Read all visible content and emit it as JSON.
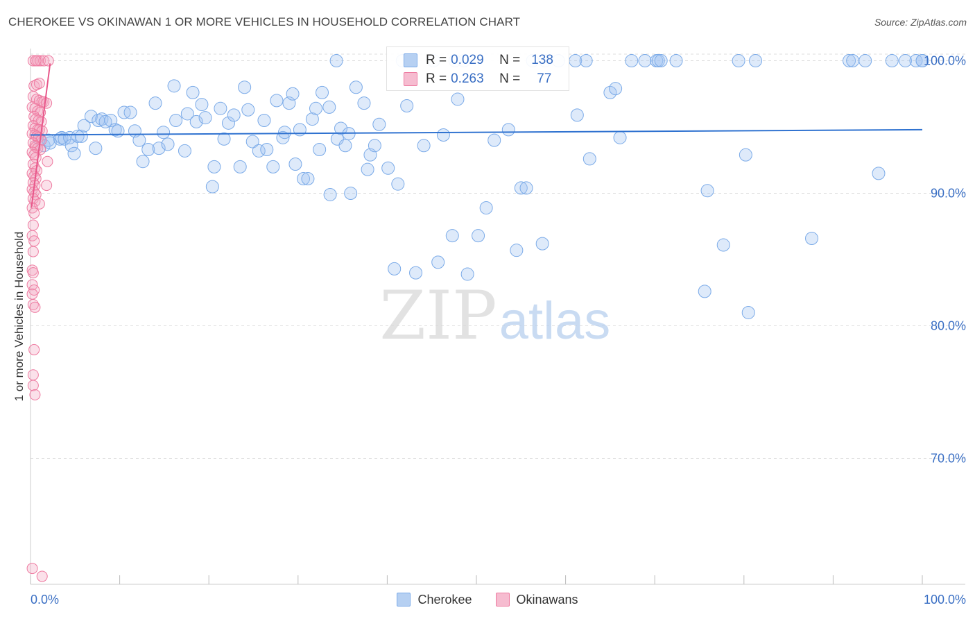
{
  "title": "CHEROKEE VS OKINAWAN 1 OR MORE VEHICLES IN HOUSEHOLD CORRELATION CHART",
  "source": "Source: ZipAtlas.com",
  "watermark": {
    "zip": "ZIP",
    "atlas": "atlas"
  },
  "legend": {
    "r_label": "R =",
    "n_label": "N =",
    "rows": [
      {
        "name": "Cherokee",
        "r": "0.029",
        "n": "138",
        "color": "#7aaae8",
        "fill": "#b6d0f2"
      },
      {
        "name": "Okinawans",
        "r": "0.263",
        "n": "77",
        "color": "#ee7aa0",
        "fill": "#f6bcd0"
      }
    ]
  },
  "chart_data": {
    "type": "scatter",
    "xlabel": "",
    "ylabel": "1 or more Vehicles in Household",
    "xlim": [
      0,
      100
    ],
    "ylim": [
      60.5,
      100.5
    ],
    "x_tick_labels": [
      "0.0%",
      "100.0%"
    ],
    "y_ticks": [
      100,
      90,
      80,
      70
    ],
    "y_tick_labels": [
      "100.0%",
      "90.0%",
      "80.0%",
      "70.0%"
    ],
    "grid": true,
    "series": [
      {
        "name": "Cherokee",
        "color": "#7aaae8",
        "trend": {
          "x": [
            0,
            100
          ],
          "y": [
            94.4,
            94.8
          ]
        },
        "points": [
          [
            1.0,
            94.1
          ],
          [
            1.5,
            93.6
          ],
          [
            2.0,
            94.0
          ],
          [
            2.2,
            93.8
          ],
          [
            3.3,
            94.1
          ],
          [
            3.5,
            94.2
          ],
          [
            3.8,
            94.1
          ],
          [
            4.4,
            94.2
          ],
          [
            4.6,
            93.6
          ],
          [
            4.9,
            93.0
          ],
          [
            5.3,
            94.3
          ],
          [
            5.7,
            94.3
          ],
          [
            6.0,
            95.1
          ],
          [
            6.8,
            95.8
          ],
          [
            7.3,
            93.4
          ],
          [
            7.6,
            95.5
          ],
          [
            8.0,
            95.6
          ],
          [
            8.4,
            95.4
          ],
          [
            9.0,
            95.5
          ],
          [
            9.5,
            94.8
          ],
          [
            9.8,
            94.7
          ],
          [
            10.5,
            96.1
          ],
          [
            11.2,
            96.1
          ],
          [
            11.7,
            94.7
          ],
          [
            12.2,
            94.0
          ],
          [
            12.6,
            92.4
          ],
          [
            13.2,
            93.3
          ],
          [
            14.0,
            96.8
          ],
          [
            14.4,
            93.4
          ],
          [
            14.9,
            94.6
          ],
          [
            15.4,
            93.7
          ],
          [
            16.1,
            98.1
          ],
          [
            16.3,
            95.5
          ],
          [
            17.3,
            93.2
          ],
          [
            17.6,
            96.0
          ],
          [
            18.2,
            97.6
          ],
          [
            18.6,
            95.4
          ],
          [
            19.2,
            96.7
          ],
          [
            19.6,
            95.7
          ],
          [
            20.4,
            90.5
          ],
          [
            20.6,
            92.0
          ],
          [
            21.3,
            96.4
          ],
          [
            21.7,
            94.1
          ],
          [
            22.2,
            95.3
          ],
          [
            22.8,
            95.9
          ],
          [
            23.5,
            92.0
          ],
          [
            24.0,
            98.0
          ],
          [
            24.4,
            96.3
          ],
          [
            24.9,
            93.9
          ],
          [
            25.6,
            93.2
          ],
          [
            26.2,
            95.5
          ],
          [
            26.5,
            93.3
          ],
          [
            27.2,
            92.0
          ],
          [
            27.6,
            97.0
          ],
          [
            28.3,
            94.2
          ],
          [
            28.5,
            94.6
          ],
          [
            29.0,
            96.8
          ],
          [
            29.4,
            97.5
          ],
          [
            29.7,
            92.2
          ],
          [
            30.2,
            94.8
          ],
          [
            30.6,
            91.1
          ],
          [
            31.1,
            91.1
          ],
          [
            31.6,
            95.6
          ],
          [
            32.0,
            96.4
          ],
          [
            32.4,
            93.3
          ],
          [
            32.7,
            97.6
          ],
          [
            33.5,
            96.5
          ],
          [
            33.6,
            89.9
          ],
          [
            34.3,
            100.0
          ],
          [
            34.4,
            94.1
          ],
          [
            34.8,
            94.9
          ],
          [
            35.3,
            93.6
          ],
          [
            35.7,
            94.5
          ],
          [
            35.9,
            90.0
          ],
          [
            36.5,
            98.0
          ],
          [
            37.4,
            96.8
          ],
          [
            37.8,
            91.8
          ],
          [
            38.1,
            92.9
          ],
          [
            38.6,
            93.6
          ],
          [
            39.1,
            95.2
          ],
          [
            40.1,
            91.9
          ],
          [
            40.8,
            84.3
          ],
          [
            41.2,
            90.7
          ],
          [
            41.7,
            100.0
          ],
          [
            42.2,
            96.6
          ],
          [
            43.2,
            84.0
          ],
          [
            44.1,
            93.6
          ],
          [
            45.2,
            100.0
          ],
          [
            45.7,
            84.8
          ],
          [
            46.3,
            94.4
          ],
          [
            47.3,
            86.8
          ],
          [
            47.6,
            100.0
          ],
          [
            47.9,
            97.1
          ],
          [
            48.6,
            100.0
          ],
          [
            49.0,
            83.9
          ],
          [
            50.2,
            86.8
          ],
          [
            51.1,
            88.9
          ],
          [
            52.0,
            94.0
          ],
          [
            53.6,
            94.8
          ],
          [
            54.5,
            85.7
          ],
          [
            55.0,
            90.4
          ],
          [
            55.6,
            90.4
          ],
          [
            56.3,
            100.0
          ],
          [
            57.4,
            86.2
          ],
          [
            57.7,
            100.0
          ],
          [
            59.2,
            100.0
          ],
          [
            61.1,
            100.0
          ],
          [
            61.3,
            95.9
          ],
          [
            62.7,
            92.6
          ],
          [
            62.3,
            100.0
          ],
          [
            65.0,
            97.6
          ],
          [
            65.6,
            97.9
          ],
          [
            66.1,
            94.2
          ],
          [
            67.4,
            100.0
          ],
          [
            68.9,
            100.0
          ],
          [
            70.2,
            100.0
          ],
          [
            70.4,
            100.0
          ],
          [
            70.7,
            100.0
          ],
          [
            72.4,
            100.0
          ],
          [
            75.6,
            82.6
          ],
          [
            75.9,
            90.2
          ],
          [
            77.7,
            86.1
          ],
          [
            79.4,
            100.0
          ],
          [
            80.2,
            92.9
          ],
          [
            80.5,
            81.0
          ],
          [
            81.3,
            100.0
          ],
          [
            87.6,
            86.6
          ],
          [
            91.8,
            100.0
          ],
          [
            92.2,
            100.0
          ],
          [
            93.6,
            100.0
          ],
          [
            95.1,
            91.5
          ],
          [
            96.6,
            100.0
          ],
          [
            98.1,
            100.0
          ],
          [
            99.3,
            100.0
          ],
          [
            100.0,
            100.0
          ],
          [
            100.0,
            100.0
          ]
        ]
      },
      {
        "name": "Okinawans",
        "color": "#ee7aa0",
        "trend": {
          "x": [
            0.1,
            2.2
          ],
          "y": [
            88.9,
            99.8
          ]
        },
        "points": [
          [
            0.3,
            100.0
          ],
          [
            0.6,
            100.0
          ],
          [
            0.8,
            100.0
          ],
          [
            1.1,
            100.0
          ],
          [
            1.5,
            100.0
          ],
          [
            2.0,
            100.0
          ],
          [
            0.4,
            98.1
          ],
          [
            0.7,
            98.2
          ],
          [
            1.0,
            98.3
          ],
          [
            0.3,
            97.3
          ],
          [
            0.7,
            97.1
          ],
          [
            1.0,
            97.0
          ],
          [
            1.3,
            96.9
          ],
          [
            1.5,
            96.9
          ],
          [
            1.8,
            96.8
          ],
          [
            0.2,
            96.5
          ],
          [
            0.5,
            96.4
          ],
          [
            0.8,
            96.2
          ],
          [
            1.1,
            96.1
          ],
          [
            0.4,
            95.8
          ],
          [
            0.6,
            95.6
          ],
          [
            0.9,
            95.5
          ],
          [
            1.2,
            95.4
          ],
          [
            0.3,
            95.1
          ],
          [
            0.5,
            94.9
          ],
          [
            0.8,
            94.8
          ],
          [
            1.0,
            94.8
          ],
          [
            1.3,
            94.7
          ],
          [
            0.2,
            94.5
          ],
          [
            0.5,
            94.4
          ],
          [
            0.7,
            94.3
          ],
          [
            0.9,
            94.2
          ],
          [
            1.2,
            94.0
          ],
          [
            0.3,
            93.8
          ],
          [
            0.5,
            93.6
          ],
          [
            0.6,
            93.5
          ],
          [
            0.8,
            93.4
          ],
          [
            1.1,
            93.3
          ],
          [
            0.2,
            93.1
          ],
          [
            0.4,
            92.9
          ],
          [
            0.6,
            92.7
          ],
          [
            1.9,
            92.4
          ],
          [
            0.3,
            92.2
          ],
          [
            0.5,
            91.9
          ],
          [
            0.7,
            91.7
          ],
          [
            0.2,
            91.5
          ],
          [
            0.4,
            91.3
          ],
          [
            0.6,
            91.1
          ],
          [
            0.3,
            90.8
          ],
          [
            0.5,
            90.6
          ],
          [
            1.8,
            90.6
          ],
          [
            0.2,
            90.3
          ],
          [
            0.4,
            90.1
          ],
          [
            0.6,
            89.9
          ],
          [
            0.3,
            89.6
          ],
          [
            0.5,
            89.4
          ],
          [
            1.0,
            89.2
          ],
          [
            0.2,
            88.9
          ],
          [
            0.4,
            88.5
          ],
          [
            0.3,
            87.6
          ],
          [
            0.2,
            86.8
          ],
          [
            0.4,
            86.4
          ],
          [
            0.3,
            85.6
          ],
          [
            0.2,
            84.2
          ],
          [
            0.3,
            84.0
          ],
          [
            0.2,
            83.1
          ],
          [
            0.4,
            82.7
          ],
          [
            0.2,
            82.4
          ],
          [
            0.3,
            81.6
          ],
          [
            0.5,
            81.4
          ],
          [
            0.4,
            78.2
          ],
          [
            0.3,
            76.3
          ],
          [
            0.3,
            75.5
          ],
          [
            0.5,
            74.8
          ],
          [
            0.2,
            61.7
          ],
          [
            1.3,
            61.1
          ],
          [
            0.6,
            100.0
          ]
        ]
      }
    ]
  }
}
